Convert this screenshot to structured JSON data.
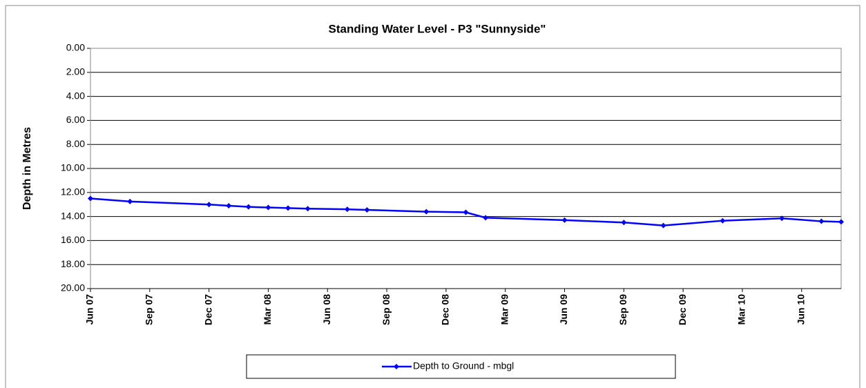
{
  "chart_data": {
    "type": "line",
    "title": "Standing Water Level - P3 \"Sunnyside\"",
    "y_label": "Depth in Metres",
    "x": [
      "2007-06",
      "2007-08",
      "2007-12",
      "2008-01",
      "2008-02",
      "2008-03",
      "2008-04",
      "2008-05",
      "2008-07",
      "2008-08",
      "2008-11",
      "2009-01",
      "2009-02",
      "2009-06",
      "2009-09",
      "2009-11",
      "2010-02",
      "2010-05",
      "2010-07",
      "2010-08"
    ],
    "series": [
      {
        "name": "Depth to Ground - mbgl",
        "color": "#0000ff",
        "values": [
          12.5,
          12.75,
          13.0,
          13.1,
          13.2,
          13.25,
          13.3,
          13.35,
          13.4,
          13.45,
          13.6,
          13.65,
          14.1,
          14.3,
          14.5,
          14.75,
          14.35,
          14.15,
          14.4,
          14.45
        ]
      }
    ],
    "xlim": [
      "2007-06",
      "2010-08"
    ],
    "xticks": [
      {
        "value": "2007-06",
        "label": "Jun 07"
      },
      {
        "value": "2007-09",
        "label": "Sep 07"
      },
      {
        "value": "2007-12",
        "label": "Dec 07"
      },
      {
        "value": "2008-03",
        "label": "Mar 08"
      },
      {
        "value": "2008-06",
        "label": "Jun 08"
      },
      {
        "value": "2008-09",
        "label": "Sep 08"
      },
      {
        "value": "2008-12",
        "label": "Dec 08"
      },
      {
        "value": "2009-03",
        "label": "Mar 09"
      },
      {
        "value": "2009-06",
        "label": "Jun 09"
      },
      {
        "value": "2009-09",
        "label": "Sep 09"
      },
      {
        "value": "2009-12",
        "label": "Dec 09"
      },
      {
        "value": "2010-03",
        "label": "Mar 10"
      },
      {
        "value": "2010-06",
        "label": "Jun 10"
      }
    ],
    "ylim": [
      0,
      20
    ],
    "y_inverted": true,
    "yticks": [
      {
        "value": 0,
        "label": "0.00"
      },
      {
        "value": 2,
        "label": "2.00"
      },
      {
        "value": 4,
        "label": "4.00"
      },
      {
        "value": 6,
        "label": "6.00"
      },
      {
        "value": 8,
        "label": "8.00"
      },
      {
        "value": 10,
        "label": "10.00"
      },
      {
        "value": 12,
        "label": "12.00"
      },
      {
        "value": 14,
        "label": "14.00"
      },
      {
        "value": 16,
        "label": "16.00"
      },
      {
        "value": 18,
        "label": "18.00"
      },
      {
        "value": 20,
        "label": "20.00"
      }
    ],
    "grid": true,
    "legend": "bottom"
  }
}
